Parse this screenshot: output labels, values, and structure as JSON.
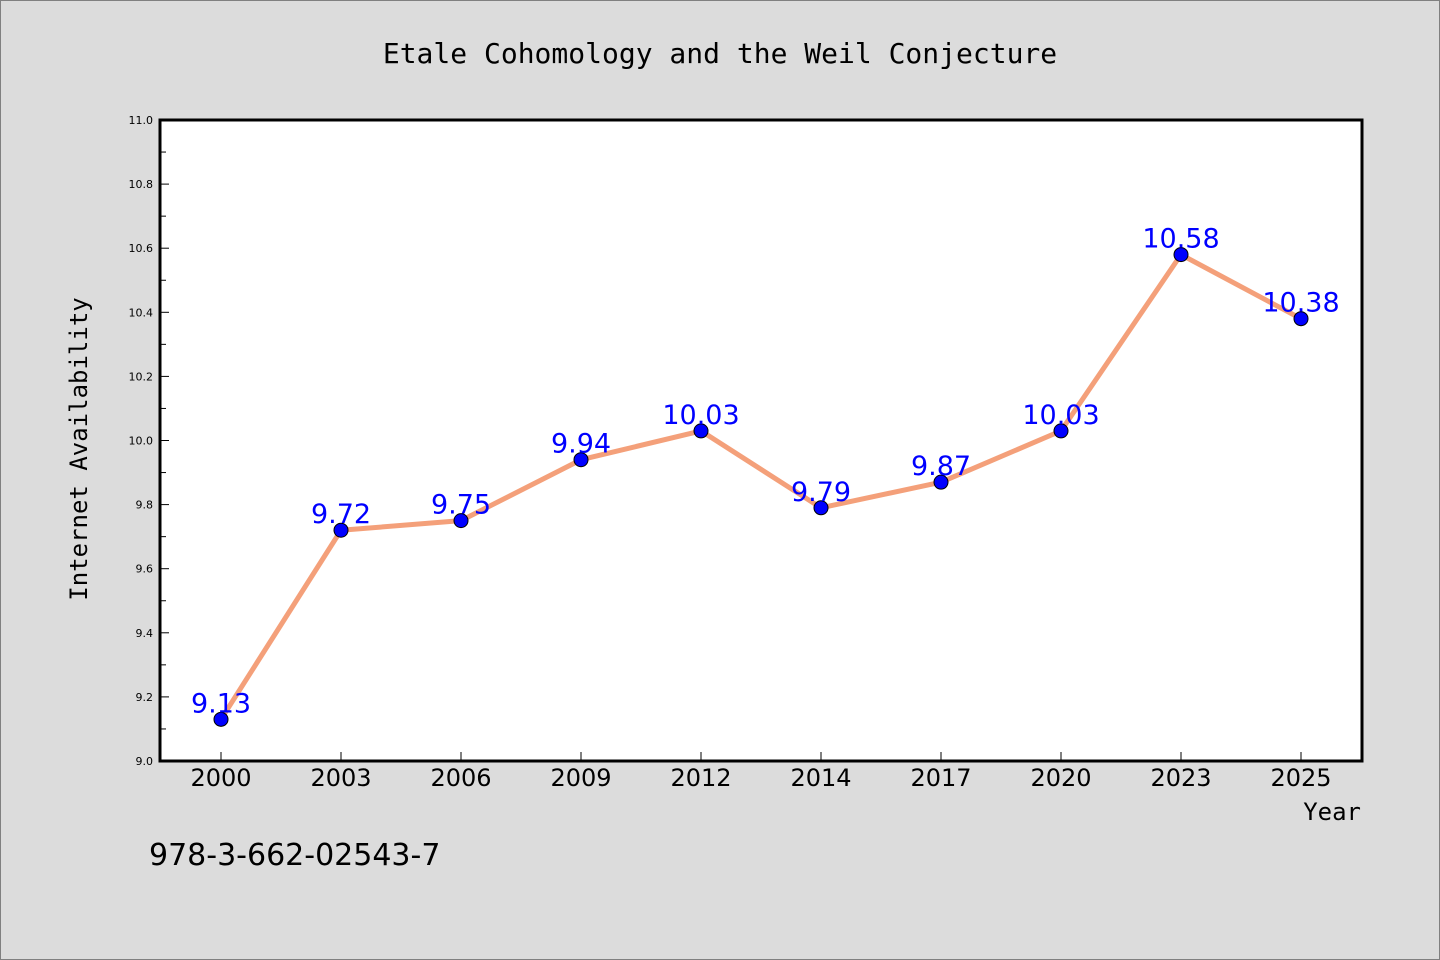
{
  "chart_data": {
    "type": "line",
    "title": "Etale Cohomology and the Weil Conjecture",
    "xlabel": "Year",
    "ylabel": "Internet Availability",
    "categories": [
      "2000",
      "2003",
      "2006",
      "2009",
      "2012",
      "2014",
      "2017",
      "2020",
      "2023",
      "2025"
    ],
    "series": [
      {
        "values": [
          9.13,
          9.72,
          9.75,
          9.94,
          10.03,
          9.79,
          9.87,
          10.03,
          10.58,
          10.38
        ],
        "data_labels": [
          "9.13",
          "9.72",
          "9.75",
          "9.94",
          "10.03",
          "9.79",
          "9.87",
          "10.03",
          "10.58",
          "10.38"
        ],
        "line_color": "#f4a07a",
        "marker_color": "#0000ff",
        "label_color": "#0000ff"
      }
    ],
    "ylim": [
      9.0,
      11.0
    ],
    "yticks": [
      "9.0",
      "9.2",
      "9.4",
      "9.6",
      "9.8",
      "10.0",
      "10.2",
      "10.4",
      "10.6",
      "10.8",
      "11.0"
    ],
    "grid": false,
    "legend": "none"
  },
  "footer": {
    "isbn": "978-3-662-02543-7"
  },
  "colors": {
    "background": "#dcdcdc",
    "plot_area": "#ffffff",
    "axis": "#000000"
  }
}
